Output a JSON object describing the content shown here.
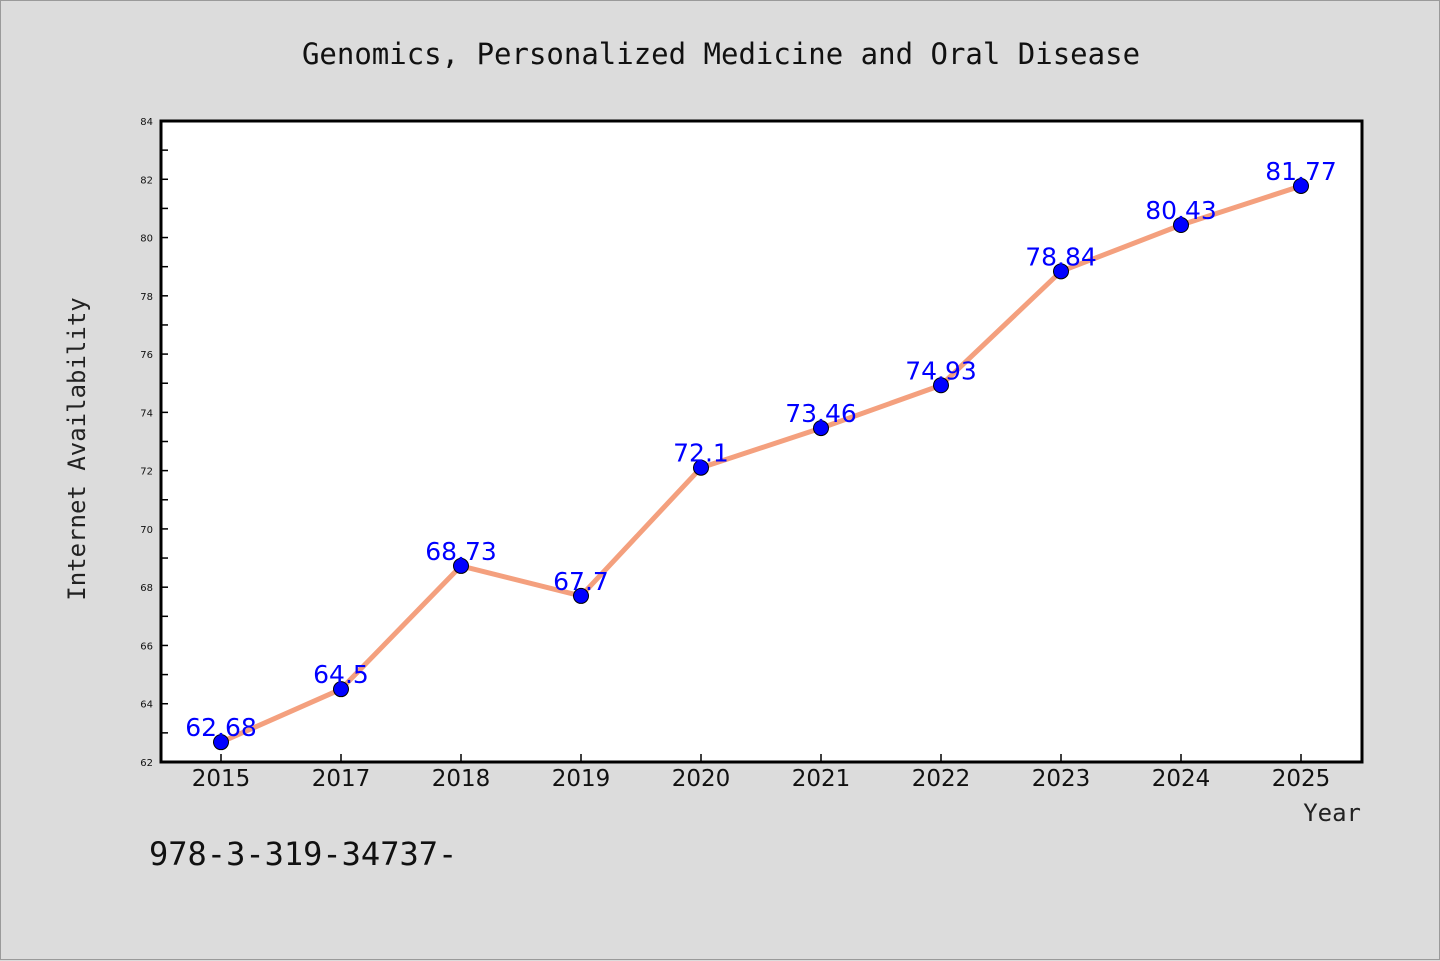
{
  "chart_data": {
    "type": "line",
    "title": "Genomics, Personalized Medicine and Oral Disease",
    "xlabel": "Year",
    "ylabel": "Internet Availability",
    "categories": [
      "2015",
      "2017",
      "2018",
      "2019",
      "2020",
      "2021",
      "2022",
      "2023",
      "2024",
      "2025"
    ],
    "values": [
      62.68,
      64.5,
      68.73,
      67.7,
      72.1,
      73.46,
      74.93,
      78.84,
      80.43,
      81.77
    ],
    "data_labels": [
      "62.68",
      "64.5",
      "68.73",
      "67.7",
      "72.1",
      "73.46",
      "74.93",
      "78.84",
      "80.43",
      "81.77"
    ],
    "yticks": [
      62,
      64,
      66,
      68,
      70,
      72,
      74,
      76,
      78,
      80,
      82,
      84
    ],
    "ylim": [
      62,
      84
    ],
    "grid": false,
    "legend": "none",
    "line_color": "#f4a07e",
    "marker_color": "#0000ff",
    "label_color": "#0000ff"
  },
  "footer_text": "978-3-319-34737-"
}
